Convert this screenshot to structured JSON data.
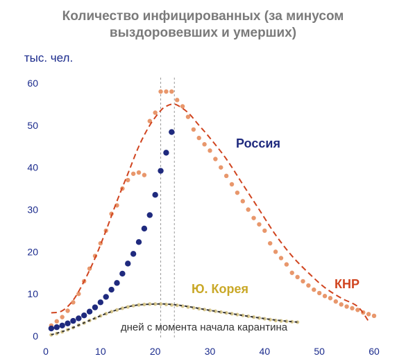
{
  "chart_data": {
    "type": "scatter",
    "title": "Количество инфицированных (за минусом выздоровевших и умерших)",
    "title_lines": [
      "Количество инфицированных (за минусом",
      "выздоровевших и умерших)"
    ],
    "ylabel": "тыс. чел.",
    "xlabel": "дней с момента начала карантина",
    "xlim": [
      0,
      60
    ],
    "ylim": [
      0,
      60
    ],
    "xticks": [
      0,
      10,
      20,
      30,
      40,
      50,
      60
    ],
    "yticks": [
      0,
      10,
      20,
      30,
      40,
      50,
      60
    ],
    "grid": false,
    "vlines": [
      21,
      23.5
    ],
    "colors": {
      "russia": "#1f2a7e",
      "china": "#e8976c",
      "china_fit": "#d0441f",
      "korea": "#d6c68c",
      "korea_fit": "#333333",
      "vline": "#999999"
    },
    "annotations": [
      {
        "text": "Россия",
        "series": "russia"
      },
      {
        "text": "КНР",
        "series": "china"
      },
      {
        "text": "Ю. Корея",
        "series": "korea"
      }
    ],
    "series": [
      {
        "name": "Россия",
        "key": "russia",
        "kind": "points",
        "x": [
          1,
          2,
          3,
          4,
          5,
          6,
          7,
          8,
          9,
          10,
          11,
          12,
          13,
          14,
          15,
          16,
          17,
          18,
          19,
          20,
          21,
          22,
          23
        ],
        "y": [
          1.8,
          2.1,
          2.5,
          3.0,
          3.6,
          4.2,
          4.9,
          5.8,
          6.8,
          8.0,
          9.3,
          11,
          12.6,
          14.8,
          17.2,
          19.5,
          22.3,
          25.5,
          28.7,
          33.5,
          39.2,
          43.5,
          48.4
        ]
      },
      {
        "name": "КНР",
        "key": "china",
        "kind": "points",
        "x": [
          1,
          2,
          3,
          4,
          5,
          6,
          7,
          8,
          9,
          10,
          11,
          12,
          13,
          14,
          15,
          16,
          17,
          18,
          19,
          20,
          21,
          22,
          23,
          24,
          25,
          26,
          27,
          28,
          29,
          30,
          31,
          32,
          33,
          34,
          35,
          36,
          37,
          38,
          39,
          40,
          41,
          42,
          43,
          44,
          45,
          46,
          47,
          48,
          49,
          50,
          51,
          52,
          53,
          54,
          55,
          56,
          57,
          58,
          59,
          60
        ],
        "y": [
          2.5,
          3.5,
          4.5,
          6,
          8,
          10,
          13,
          16,
          19,
          22,
          25,
          29,
          31,
          35,
          37,
          38.5,
          38.8,
          38.2,
          51,
          53,
          58,
          58,
          58,
          56,
          54.5,
          52,
          49,
          47,
          45.5,
          44,
          42,
          40,
          38,
          36,
          34,
          32,
          30,
          28,
          26.5,
          25,
          22,
          20,
          18.5,
          17,
          15,
          14,
          13,
          12,
          11,
          10.2,
          9.5,
          9,
          8.2,
          7.5,
          7,
          6.6,
          6.2,
          5.6,
          5.2,
          4.8
        ]
      },
      {
        "name": "КНР (тренд)",
        "key": "china_fit",
        "kind": "line",
        "x": [
          1,
          3,
          5,
          7,
          9,
          11,
          13,
          15,
          17,
          19,
          21,
          22,
          23,
          24,
          26,
          28,
          30,
          33,
          36,
          39,
          42,
          45,
          48,
          51,
          54,
          57,
          59
        ],
        "y": [
          5.5,
          6,
          8.5,
          13,
          18.5,
          25,
          32,
          38.5,
          45,
          50,
          53.5,
          54.5,
          55,
          54.8,
          53,
          50,
          47,
          42,
          36,
          30,
          24,
          19,
          15,
          11.5,
          9,
          7,
          3.5
        ]
      },
      {
        "name": "Ю. Корея",
        "key": "korea",
        "kind": "points",
        "x": [
          1,
          2,
          3,
          4,
          5,
          6,
          7,
          8,
          9,
          10,
          11,
          12,
          13,
          14,
          15,
          16,
          17,
          18,
          19,
          20,
          21,
          22,
          23,
          24,
          25,
          26,
          27,
          28,
          29,
          30,
          31,
          32,
          33,
          34,
          35,
          36,
          37,
          38,
          39,
          40,
          41,
          42,
          43,
          44,
          45,
          46
        ],
        "y": [
          0.3,
          0.6,
          1.0,
          1.5,
          2.0,
          2.6,
          3.1,
          3.7,
          4.2,
          4.8,
          5.3,
          5.8,
          6.2,
          6.6,
          6.9,
          7.2,
          7.4,
          7.5,
          7.6,
          7.6,
          7.6,
          7.5,
          7.4,
          7.3,
          7.1,
          6.9,
          6.7,
          6.5,
          6.3,
          6.1,
          5.9,
          5.7,
          5.5,
          5.3,
          5.1,
          4.9,
          4.7,
          4.5,
          4.3,
          4.1,
          3.9,
          3.7,
          3.6,
          3.5,
          3.4,
          3.3
        ]
      },
      {
        "name": "Ю. Корея (тренд)",
        "key": "korea_fit",
        "kind": "line",
        "x": [
          1,
          4,
          8,
          12,
          16,
          20,
          23,
          26,
          30,
          34,
          38,
          42,
          46
        ],
        "y": [
          0.3,
          1.5,
          3.7,
          5.8,
          7.2,
          7.6,
          7.5,
          7.0,
          6.1,
          5.3,
          4.5,
          3.8,
          3.3
        ]
      }
    ]
  }
}
